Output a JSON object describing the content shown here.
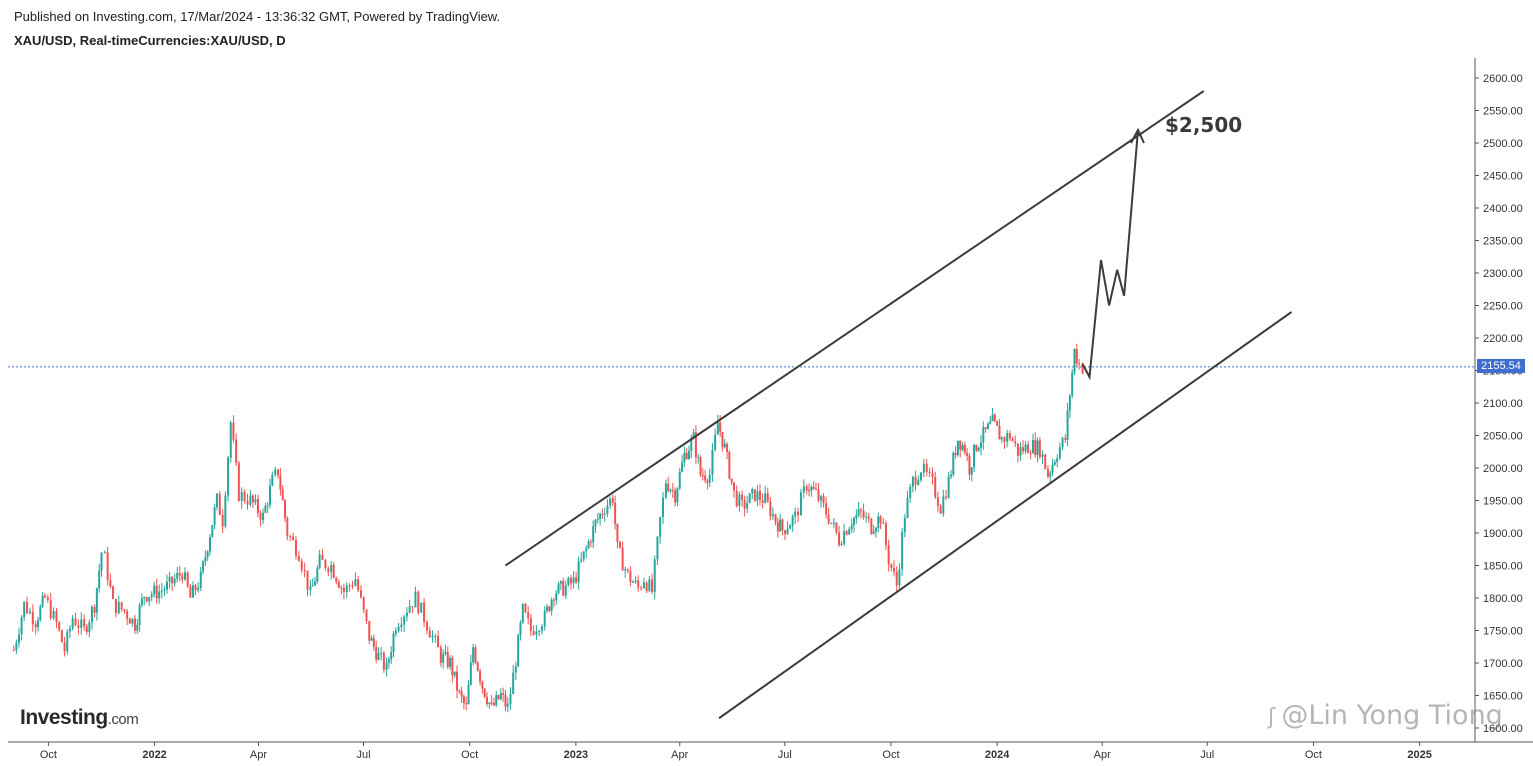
{
  "header": {
    "published_line": "Published on Investing.com, 17/Mar/2024 - 13:36:32 GMT, Powered by TradingView.",
    "symbol_line": "XAU/USD, Real-timeCurrencies:XAU/USD, D"
  },
  "brand": {
    "name": "Investing",
    "suffix": ".com"
  },
  "watermark": {
    "text": "@Lin Yong Tiong",
    "icon": "zhihu-icon"
  },
  "chart_data": {
    "type": "line",
    "title": "XAU/USD, Real-timeCurrencies:XAU/USD, D",
    "xlabel": "",
    "ylabel": "",
    "ylim": [
      1600,
      2620
    ],
    "y_ticks": [
      "2600.00",
      "2550.00",
      "2500.00",
      "2450.00",
      "2400.00",
      "2350.00",
      "2300.00",
      "2250.00",
      "2200.00",
      "2150.00",
      "2100.00",
      "2050.00",
      "2000.00",
      "1950.00",
      "1900.00",
      "1850.00",
      "1800.00",
      "1750.00",
      "1700.00",
      "1650.00",
      "1600.00"
    ],
    "x_ticks": [
      "Oct",
      "2022",
      "Apr",
      "Jul",
      "Oct",
      "2023",
      "Apr",
      "Jul",
      "Oct",
      "2024",
      "Apr",
      "Jul",
      "Oct",
      "2025"
    ],
    "current_price": 2155.54,
    "current_price_label": "2155.54",
    "target_label": "$2,500",
    "colors": {
      "up": "#26a69a",
      "down": "#ef5350",
      "trendline": "#3c3c3c",
      "price_line": "#3d6ed0",
      "axis": "#555555"
    },
    "series": [
      {
        "points": [
          [
            "2021-09-01",
            1720
          ],
          [
            "2021-09-10",
            1790
          ],
          [
            "2021-09-20",
            1765
          ],
          [
            "2021-09-28",
            1800
          ],
          [
            "2021-10-08",
            1760
          ],
          [
            "2021-10-15",
            1720
          ],
          [
            "2021-10-22",
            1770
          ],
          [
            "2021-11-01",
            1750
          ],
          [
            "2021-11-10",
            1790
          ],
          [
            "2021-11-16",
            1870
          ],
          [
            "2021-11-19",
            1860
          ],
          [
            "2021-11-26",
            1790
          ],
          [
            "2021-12-06",
            1780
          ],
          [
            "2021-12-15",
            1760
          ],
          [
            "2021-12-23",
            1805
          ],
          [
            "2022-01-05",
            1810
          ],
          [
            "2022-01-14",
            1820
          ],
          [
            "2022-01-25",
            1840
          ],
          [
            "2022-02-01",
            1800
          ],
          [
            "2022-02-10",
            1830
          ],
          [
            "2022-02-18",
            1900
          ],
          [
            "2022-02-24",
            1950
          ],
          [
            "2022-03-01",
            1920
          ],
          [
            "2022-03-08",
            2070
          ],
          [
            "2022-03-15",
            1960
          ],
          [
            "2022-03-25",
            1950
          ],
          [
            "2022-04-05",
            1925
          ],
          [
            "2022-04-13",
            1980
          ],
          [
            "2022-04-18",
            1995
          ],
          [
            "2022-04-26",
            1900
          ],
          [
            "2022-05-06",
            1870
          ],
          [
            "2022-05-16",
            1805
          ],
          [
            "2022-05-24",
            1855
          ],
          [
            "2022-06-03",
            1850
          ],
          [
            "2022-06-14",
            1810
          ],
          [
            "2022-06-24",
            1830
          ],
          [
            "2022-07-06",
            1740
          ],
          [
            "2022-07-14",
            1710
          ],
          [
            "2022-07-21",
            1690
          ],
          [
            "2022-07-29",
            1760
          ],
          [
            "2022-08-10",
            1790
          ],
          [
            "2022-08-15",
            1800
          ],
          [
            "2022-08-25",
            1760
          ],
          [
            "2022-09-06",
            1710
          ],
          [
            "2022-09-14",
            1700
          ],
          [
            "2022-09-22",
            1650
          ],
          [
            "2022-09-28",
            1630
          ],
          [
            "2022-10-04",
            1725
          ],
          [
            "2022-10-12",
            1665
          ],
          [
            "2022-10-20",
            1630
          ],
          [
            "2022-10-28",
            1650
          ],
          [
            "2022-11-03",
            1630
          ],
          [
            "2022-11-10",
            1705
          ],
          [
            "2022-11-16",
            1780
          ],
          [
            "2022-11-23",
            1750
          ],
          [
            "2022-12-05",
            1770
          ],
          [
            "2022-12-13",
            1810
          ],
          [
            "2022-12-21",
            1815
          ],
          [
            "2022-12-30",
            1825
          ],
          [
            "2023-01-10",
            1875
          ],
          [
            "2023-01-18",
            1915
          ],
          [
            "2023-01-26",
            1940
          ],
          [
            "2023-02-02",
            1955
          ],
          [
            "2023-02-06",
            1875
          ],
          [
            "2023-02-15",
            1835
          ],
          [
            "2023-02-24",
            1815
          ],
          [
            "2023-03-01",
            1830
          ],
          [
            "2023-03-08",
            1810
          ],
          [
            "2023-03-15",
            1920
          ],
          [
            "2023-03-20",
            1980
          ],
          [
            "2023-03-28",
            1960
          ],
          [
            "2023-04-05",
            2020
          ],
          [
            "2023-04-13",
            2045
          ],
          [
            "2023-04-19",
            1990
          ],
          [
            "2023-04-27",
            1990
          ],
          [
            "2023-05-04",
            2070
          ],
          [
            "2023-05-10",
            2030
          ],
          [
            "2023-05-18",
            1960
          ],
          [
            "2023-05-25",
            1940
          ],
          [
            "2023-06-05",
            1960
          ],
          [
            "2023-06-14",
            1950
          ],
          [
            "2023-06-23",
            1920
          ],
          [
            "2023-06-29",
            1905
          ],
          [
            "2023-07-10",
            1925
          ],
          [
            "2023-07-20",
            1975
          ],
          [
            "2023-07-28",
            1960
          ],
          [
            "2023-08-08",
            1925
          ],
          [
            "2023-08-17",
            1890
          ],
          [
            "2023-08-28",
            1920
          ],
          [
            "2023-09-05",
            1930
          ],
          [
            "2023-09-14",
            1910
          ],
          [
            "2023-09-22",
            1925
          ],
          [
            "2023-09-29",
            1860
          ],
          [
            "2023-10-06",
            1820
          ],
          [
            "2023-10-13",
            1930
          ],
          [
            "2023-10-20",
            1980
          ],
          [
            "2023-10-27",
            2000
          ],
          [
            "2023-11-06",
            1975
          ],
          [
            "2023-11-13",
            1940
          ],
          [
            "2023-11-20",
            1980
          ],
          [
            "2023-11-28",
            2045
          ],
          [
            "2023-12-04",
            2030
          ],
          [
            "2023-12-08",
            2000
          ],
          [
            "2023-12-14",
            2035
          ],
          [
            "2023-12-22",
            2055
          ],
          [
            "2023-12-28",
            2070
          ],
          [
            "2024-01-05",
            2045
          ],
          [
            "2024-01-12",
            2050
          ],
          [
            "2024-01-19",
            2025
          ],
          [
            "2024-01-30",
            2035
          ],
          [
            "2024-02-07",
            2030
          ],
          [
            "2024-02-14",
            1990
          ],
          [
            "2024-02-22",
            2025
          ],
          [
            "2024-02-29",
            2045
          ],
          [
            "2024-03-04",
            2115
          ],
          [
            "2024-03-08",
            2180
          ],
          [
            "2024-03-12",
            2160
          ],
          [
            "2024-03-15",
            2155
          ]
        ]
      }
    ],
    "annotations": {
      "upper_channel": [
        [
          "2022-11-01",
          1850
        ],
        [
          "2024-06-28",
          2580
        ]
      ],
      "lower_channel": [
        [
          "2023-05-05",
          1615
        ],
        [
          "2024-09-12",
          2240
        ]
      ],
      "projection": [
        [
          "2024-03-15",
          2160
        ],
        [
          "2024-03-21",
          2140
        ],
        [
          "2024-03-31",
          2320
        ],
        [
          "2024-04-07",
          2250
        ],
        [
          "2024-04-14",
          2305
        ],
        [
          "2024-04-20",
          2265
        ],
        [
          "2024-05-02",
          2520
        ]
      ]
    }
  }
}
